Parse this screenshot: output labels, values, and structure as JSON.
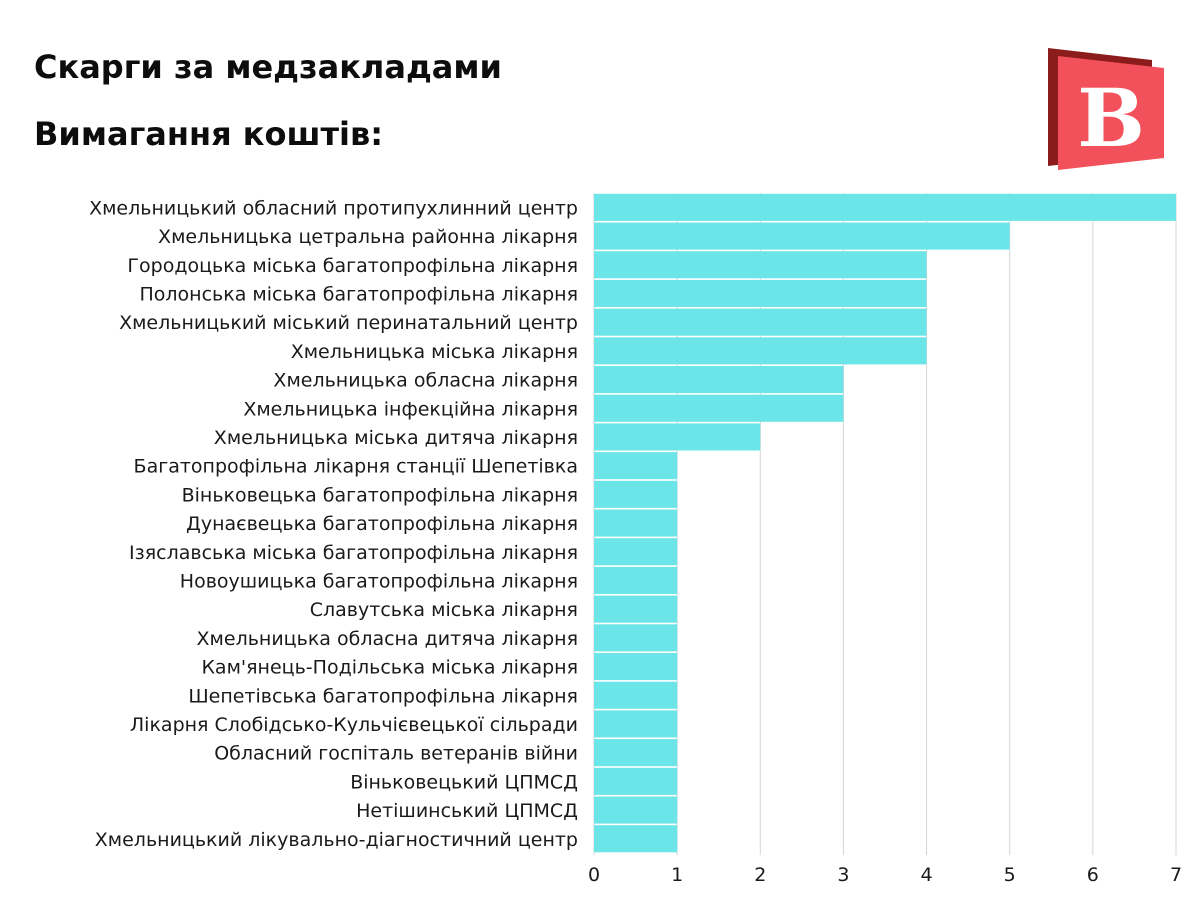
{
  "colors": {
    "bar": "#6ce5e8",
    "grid": "#d6d6d6",
    "logo_front": "#f2505a",
    "logo_back": "#8c1c1c",
    "logo_letter": "#ffffff"
  },
  "logo": {
    "letter": "B",
    "icon": "logo-b-icon"
  },
  "chart_data": {
    "type": "bar",
    "orientation": "horizontal",
    "title": "Скарги за медзакладами",
    "subtitle": "Вимагання коштів:",
    "xlabel": "",
    "ylabel": "",
    "xlim": [
      0,
      7
    ],
    "xticks": [
      "0",
      "1",
      "2",
      "3",
      "4",
      "5",
      "6",
      "7"
    ],
    "grid": true,
    "categories": [
      "Хмельницький обласний протипухлинний центр",
      "Хмельницька цетральна районна лікарня",
      "Городоцька міська багатопрофільна лікарня",
      "Полонська міська багатопрофільна лікарня",
      "Хмельницький міський перинатальний центр",
      "Хмельницька міська лікарня",
      "Хмельницька обласна лікарня",
      "Хмельницька інфекційна лікарня",
      "Хмельницька міська дитяча лікарня",
      "Багатопрофільна лікарня станції Шепетівка",
      "Віньковецька багатопрофільна лікарня",
      "Дунаєвецька багатопрофільна лікарня",
      "Ізяславська міська багатопрофільна лікарня",
      "Новоушицька багатопрофільна лікарня",
      "Славутська міська лікарня",
      "Хмельницька обласна дитяча лікарня",
      "Кам'янець-Подільська міська лікарня",
      "Шепетівська багатопрофільна лікарня",
      "Лікарня Слобідсько-Кульчієвецької сільради",
      "Обласний госпіталь ветеранів війни",
      "Віньковецький ЦПМСД",
      "Нетішинський ЦПМСД",
      "Хмельницький лікувально-діагностичний центр"
    ],
    "values": [
      7,
      5,
      4,
      4,
      4,
      4,
      3,
      3,
      2,
      1,
      1,
      1,
      1,
      1,
      1,
      1,
      1,
      1,
      1,
      1,
      1,
      1,
      1
    ]
  }
}
